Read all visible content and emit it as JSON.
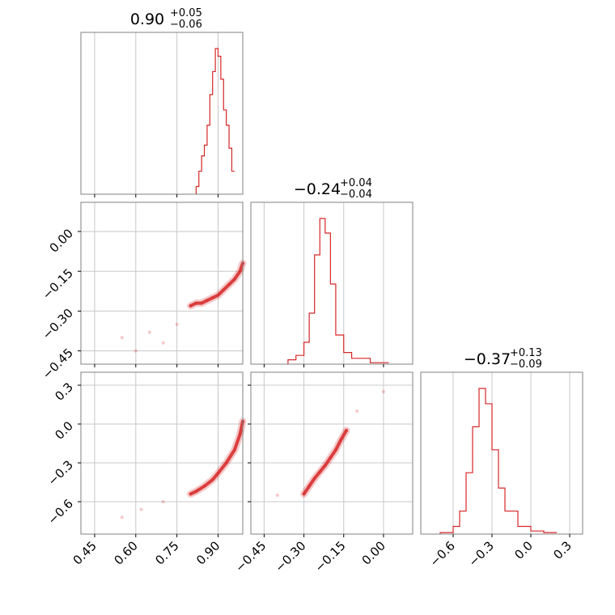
{
  "chart_data": {
    "type": "corner",
    "color": "#d62728",
    "grid": true,
    "panels": [
      {
        "kind": "hist",
        "param": 0,
        "title": {
          "value": "0.90",
          "plus": "+0.05",
          "minus": "−0.06"
        },
        "x": [
          0.82,
          0.83,
          0.84,
          0.85,
          0.86,
          0.87,
          0.88,
          0.89,
          0.9,
          0.91,
          0.92,
          0.93,
          0.94,
          0.95
        ],
        "counts": [
          0.05,
          0.15,
          0.25,
          0.32,
          0.45,
          0.65,
          0.8,
          0.95,
          0.9,
          0.75,
          0.55,
          0.45,
          0.3,
          0.15
        ]
      },
      {
        "kind": "hist",
        "param": 1,
        "title": {
          "value": "−0.24",
          "plus": "+0.04",
          "minus": "−0.04"
        },
        "x": [
          -0.36,
          -0.33,
          -0.3,
          -0.28,
          -0.26,
          -0.24,
          -0.22,
          -0.2,
          -0.18,
          -0.15,
          -0.12,
          -0.05
        ],
        "counts": [
          0.03,
          0.06,
          0.15,
          0.35,
          0.75,
          1.0,
          0.9,
          0.55,
          0.2,
          0.08,
          0.04,
          0.01
        ]
      },
      {
        "kind": "hist",
        "param": 2,
        "title": {
          "value": "−0.37",
          "plus": "+0.13",
          "minus": "−0.09"
        },
        "x": [
          -0.7,
          -0.6,
          -0.55,
          -0.5,
          -0.45,
          -0.4,
          -0.35,
          -0.3,
          -0.25,
          -0.2,
          -0.1,
          0.0,
          0.1
        ],
        "counts": [
          0.01,
          0.05,
          0.15,
          0.4,
          0.7,
          0.95,
          0.85,
          0.55,
          0.3,
          0.15,
          0.05,
          0.02,
          0.01
        ]
      },
      {
        "kind": "scatter",
        "xparam": 0,
        "yparam": 1,
        "points": [
          [
            0.8,
            -0.28
          ],
          [
            0.82,
            -0.27
          ],
          [
            0.84,
            -0.27
          ],
          [
            0.86,
            -0.26
          ],
          [
            0.88,
            -0.25
          ],
          [
            0.9,
            -0.24
          ],
          [
            0.92,
            -0.22
          ],
          [
            0.94,
            -0.2
          ],
          [
            0.96,
            -0.18
          ],
          [
            0.98,
            -0.15
          ],
          [
            0.99,
            -0.12
          ],
          [
            0.55,
            -0.4
          ],
          [
            0.6,
            -0.45
          ],
          [
            0.65,
            -0.38
          ],
          [
            0.7,
            -0.42
          ],
          [
            0.75,
            -0.35
          ]
        ]
      },
      {
        "kind": "scatter",
        "xparam": 0,
        "yparam": 2,
        "points": [
          [
            0.8,
            -0.54
          ],
          [
            0.82,
            -0.52
          ],
          [
            0.85,
            -0.48
          ],
          [
            0.88,
            -0.43
          ],
          [
            0.9,
            -0.38
          ],
          [
            0.93,
            -0.3
          ],
          [
            0.96,
            -0.2
          ],
          [
            0.98,
            -0.08
          ],
          [
            0.99,
            0.02
          ],
          [
            0.55,
            -0.72
          ],
          [
            0.62,
            -0.66
          ],
          [
            0.7,
            -0.6
          ]
        ]
      },
      {
        "kind": "scatter",
        "xparam": 1,
        "yparam": 2,
        "points": [
          [
            -0.3,
            -0.54
          ],
          [
            -0.28,
            -0.48
          ],
          [
            -0.26,
            -0.42
          ],
          [
            -0.24,
            -0.37
          ],
          [
            -0.22,
            -0.32
          ],
          [
            -0.2,
            -0.26
          ],
          [
            -0.18,
            -0.2
          ],
          [
            -0.16,
            -0.12
          ],
          [
            -0.14,
            -0.05
          ],
          [
            -0.4,
            -0.55
          ],
          [
            -0.1,
            0.1
          ],
          [
            0.0,
            0.25
          ]
        ]
      }
    ],
    "axes": [
      {
        "range": [
          0.4,
          0.99
        ],
        "ticks": [
          0.45,
          0.6,
          0.75,
          0.9
        ],
        "tick_labels": [
          "0.45",
          "0.60",
          "0.75",
          "0.90"
        ]
      },
      {
        "range": [
          -0.5,
          0.11
        ],
        "ticks": [
          -0.45,
          -0.3,
          -0.15,
          0.0
        ],
        "tick_labels": [
          "−0.45",
          "−0.30",
          "−0.15",
          "0.00"
        ]
      },
      {
        "range": [
          -0.85,
          0.4
        ],
        "ticks": [
          -0.6,
          -0.3,
          0.0,
          0.3
        ],
        "tick_labels": [
          "−0.6",
          "−0.3",
          "0.0",
          "0.3"
        ]
      }
    ]
  }
}
